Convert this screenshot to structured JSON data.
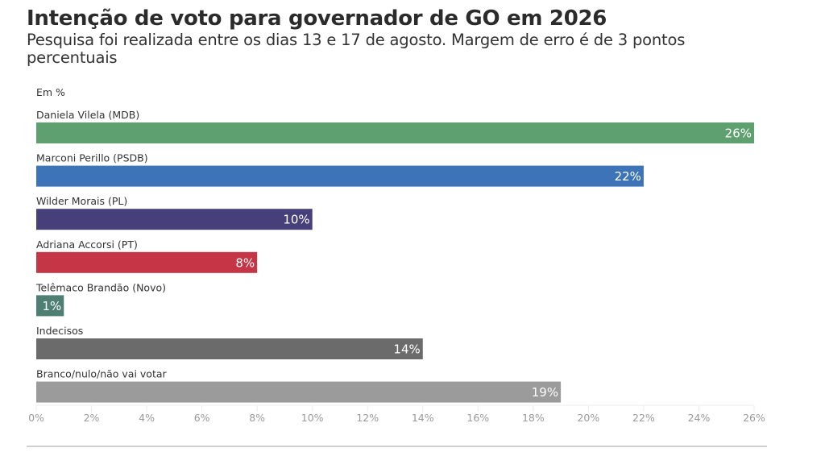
{
  "header": {
    "title": "Intenção de voto para governador de GO em 2026",
    "subtitle": "Pesquisa foi realizada entre os dias 13 e 17 de agosto. Margem de erro é de 3 pontos percentuais",
    "unit_label": "Em %"
  },
  "chart_data": {
    "type": "bar",
    "orientation": "horizontal",
    "title": "Intenção de voto para governador de GO em 2026",
    "subtitle": "Pesquisa foi realizada entre os dias 13 e 17 de agosto. Margem de erro é de 3 pontos percentuais",
    "xlabel": "",
    "ylabel": "Em %",
    "categories": [
      "Daniela Vilela (MDB)",
      "Marconi Perillo (PSDB)",
      "Wilder Morais (PL)",
      "Adriana Accorsi (PT)",
      "Telêmaco Brandão (Novo)",
      "Indecisos",
      "Branco/nulo/não vai votar"
    ],
    "values": [
      26,
      22,
      10,
      8,
      1,
      14,
      19
    ],
    "value_labels": [
      "26%",
      "22%",
      "10%",
      "8%",
      "1%",
      "14%",
      "19%"
    ],
    "colors": [
      "#5ea06f",
      "#3d74b8",
      "#463f7a",
      "#c43646",
      "#4e7f73",
      "#6b6b6b",
      "#9b9b9b"
    ],
    "xlim": [
      0,
      26
    ],
    "x_ticks": [
      0,
      2,
      4,
      6,
      8,
      10,
      12,
      14,
      16,
      18,
      20,
      22,
      24,
      26
    ],
    "x_tick_labels": [
      "0%",
      "2%",
      "4%",
      "6%",
      "8%",
      "10%",
      "12%",
      "14%",
      "16%",
      "18%",
      "20%",
      "22%",
      "24%",
      "26%"
    ],
    "grid": true,
    "legend": "none"
  }
}
